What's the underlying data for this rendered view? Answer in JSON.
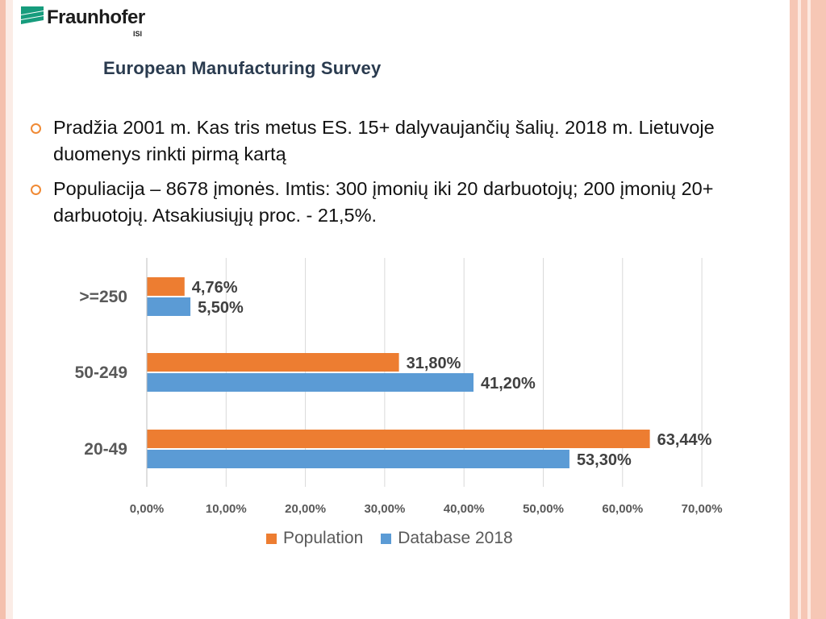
{
  "logo": {
    "name": "Fraunhofer",
    "sub": "ISI"
  },
  "survey_title": "European Manufacturing Survey",
  "bullets": [
    "Pradžia 2001 m. Kas tris metus ES.  15+ dalyvaujančių šalių. 2018 m. Lietuvoje duomenys rinkti pirmą kartą",
    "Populiacija – 8678 įmonės. Imtis: 300 įmonių iki 20 darbuotojų; 200 įmonių 20+ darbuotojų. Atsakiusiųjų proc. - 21,5%."
  ],
  "colors": {
    "accent": "#f08a35",
    "population": "#ed7d31",
    "database": "#5b9bd5"
  },
  "chart_data": {
    "type": "bar",
    "orientation": "horizontal",
    "categories": [
      ">=250",
      "50-249",
      "20-49"
    ],
    "series": [
      {
        "name": "Population",
        "values": [
          4.76,
          31.8,
          63.44
        ],
        "labels": [
          "4,76%",
          "31,80%",
          "63,44%"
        ]
      },
      {
        "name": "Database 2018",
        "values": [
          5.5,
          41.2,
          53.3
        ],
        "labels": [
          "5,50%",
          "41,20%",
          "53,30%"
        ]
      }
    ],
    "xlim": [
      0,
      70
    ],
    "xticks": [
      "0,00%",
      "10,00%",
      "20,00%",
      "30,00%",
      "40,00%",
      "50,00%",
      "60,00%",
      "70,00%"
    ],
    "grid": true,
    "legend": "bottom"
  }
}
